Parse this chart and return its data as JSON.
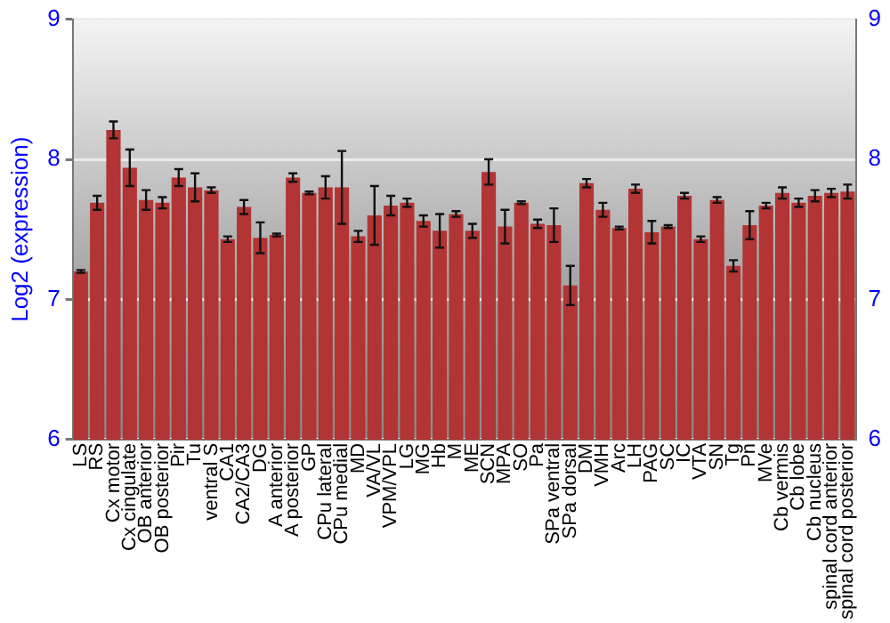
{
  "chart_data": {
    "type": "bar",
    "ylabel": "Log2 (expression)",
    "categories": [
      "LS",
      "RS",
      "Cx motor",
      "Cx cingulate",
      "OB anterior",
      "OB posterior",
      "Pir",
      "Tu",
      "ventral S",
      "CA1",
      "CA2/CA3",
      "DG",
      "A anterior",
      "A posterior",
      "GP",
      "CPu lateral",
      "CPu medial",
      "MD",
      "VA/VL",
      "VPM/VPL",
      "LG",
      "MG",
      "Hb",
      "M",
      "ME",
      "SCN",
      "MPA",
      "SO",
      "Pa",
      "SPa ventral",
      "SPa dorsal",
      "DM",
      "VMH",
      "Arc",
      "LH",
      "PAG",
      "SC",
      "IC",
      "VTA",
      "SN",
      "Tg",
      "Pn",
      "MVe",
      "Cb vermis",
      "Cb lobe",
      "Cb nucleus",
      "spinal cord anterior",
      "spinal cord posterior"
    ],
    "values": [
      7.2,
      7.69,
      8.21,
      7.94,
      7.71,
      7.69,
      7.87,
      7.8,
      7.78,
      7.43,
      7.66,
      7.44,
      7.46,
      7.87,
      7.76,
      7.8,
      7.8,
      7.45,
      7.6,
      7.67,
      7.69,
      7.56,
      7.49,
      7.61,
      7.49,
      7.91,
      7.52,
      7.69,
      7.54,
      7.53,
      7.1,
      7.83,
      7.64,
      7.51,
      7.79,
      7.48,
      7.52,
      7.74,
      7.43,
      7.71,
      7.24,
      7.53,
      7.67,
      7.76,
      7.69,
      7.74,
      7.76,
      7.77
    ],
    "errors": [
      0.01,
      0.05,
      0.06,
      0.13,
      0.07,
      0.04,
      0.06,
      0.1,
      0.02,
      0.02,
      0.05,
      0.11,
      0.01,
      0.03,
      0.01,
      0.08,
      0.26,
      0.04,
      0.21,
      0.07,
      0.03,
      0.04,
      0.12,
      0.02,
      0.05,
      0.09,
      0.12,
      0.01,
      0.03,
      0.12,
      0.14,
      0.03,
      0.05,
      0.01,
      0.03,
      0.08,
      0.01,
      0.02,
      0.02,
      0.02,
      0.04,
      0.1,
      0.02,
      0.04,
      0.03,
      0.04,
      0.03,
      0.05
    ],
    "color": "#b23434",
    "ylim": [
      6,
      9
    ],
    "yticks": [
      6,
      7,
      8,
      9
    ],
    "y2lim": [
      6,
      9
    ],
    "y2ticks": [
      6,
      7,
      8,
      9
    ],
    "grid": "y",
    "legend": false
  }
}
